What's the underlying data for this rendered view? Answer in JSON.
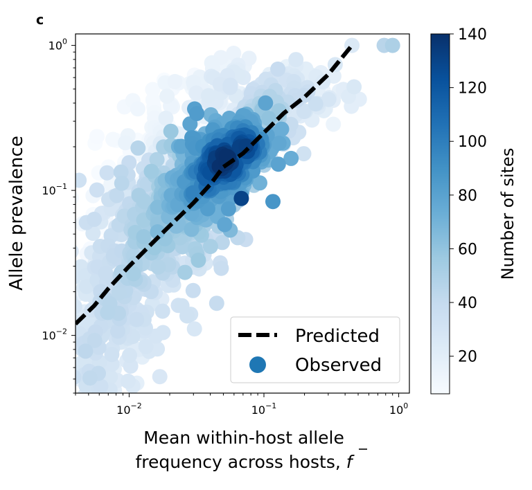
{
  "chart_data": {
    "type": "scatter",
    "panel_label": "c",
    "xlabel_line1": "Mean within-host allele",
    "xlabel_line2_prefix": "frequency across hosts, ",
    "xlabel_symbol": "f",
    "ylabel": "Allele prevalence",
    "xscale": "log",
    "yscale": "log",
    "xlim": [
      0.004,
      1.2
    ],
    "ylim": [
      0.004,
      1.2
    ],
    "x_ticks": [
      {
        "value": 0.01,
        "base": "10",
        "exp": "−2"
      },
      {
        "value": 0.1,
        "base": "10",
        "exp": "−1"
      },
      {
        "value": 1,
        "base": "10",
        "exp": "0"
      }
    ],
    "y_ticks": [
      {
        "value": 0.01,
        "base": "10",
        "exp": "−2"
      },
      {
        "value": 0.1,
        "base": "10",
        "exp": "−1"
      },
      {
        "value": 1,
        "base": "10",
        "exp": "0"
      }
    ],
    "colorbar": {
      "label": "Number of sites",
      "min": 6,
      "max": 140,
      "ticks": [
        20,
        40,
        60,
        80,
        100,
        120,
        140
      ],
      "colormap": "Blues",
      "stops": [
        "#f7fbff",
        "#deebf7",
        "#c6dbef",
        "#9ecae1",
        "#6baed6",
        "#4292c6",
        "#2171b5",
        "#08519c",
        "#08306b"
      ]
    },
    "legend": {
      "placement": "lower-right",
      "entries": [
        {
          "label": "Predicted",
          "marker": "dashed-line",
          "color": "#000000"
        },
        {
          "label": "Observed",
          "marker": "circle",
          "color": "#1f77b4"
        }
      ]
    },
    "series": [
      {
        "name": "Predicted",
        "kind": "line",
        "color": "#000000",
        "style": "dashed",
        "x": [
          0.004,
          0.0055,
          0.007,
          0.01,
          0.014,
          0.02,
          0.03,
          0.04,
          0.05,
          0.07,
          0.1,
          0.14,
          0.2,
          0.3,
          0.45
        ],
        "y": [
          0.012,
          0.016,
          0.021,
          0.03,
          0.041,
          0.057,
          0.082,
          0.11,
          0.145,
          0.18,
          0.25,
          0.34,
          0.44,
          0.63,
          1.0
        ]
      },
      {
        "name": "Observed",
        "kind": "density-scatter",
        "points": [
          {
            "x": 0.45,
            "y": 1.0,
            "c": 25
          },
          {
            "x": 0.78,
            "y": 1.0,
            "c": 45
          },
          {
            "x": 0.9,
            "y": 1.0,
            "c": 50
          },
          {
            "x": 0.005,
            "y": 0.0055,
            "c": 15
          },
          {
            "x": 0.068,
            "y": 0.088,
            "c": 130
          },
          {
            "x": 0.009,
            "y": 0.14,
            "c": 8
          },
          {
            "x": 0.23,
            "y": 0.62,
            "c": 20
          },
          {
            "x": 0.11,
            "y": 0.63,
            "c": 18
          }
        ],
        "density_clouds": [
          {
            "x": 0.005,
            "y": 0.0065,
            "sx": 0.16,
            "sy": 0.16,
            "n": 40,
            "c": 40
          },
          {
            "x": 0.006,
            "y": 0.009,
            "sx": 0.18,
            "sy": 0.2,
            "n": 60,
            "c": 35
          },
          {
            "x": 0.008,
            "y": 0.016,
            "sx": 0.2,
            "sy": 0.22,
            "n": 90,
            "c": 40
          },
          {
            "x": 0.007,
            "y": 0.05,
            "sx": 0.12,
            "sy": 0.3,
            "n": 40,
            "c": 10
          },
          {
            "x": 0.011,
            "y": 0.03,
            "sx": 0.22,
            "sy": 0.22,
            "n": 110,
            "c": 45
          },
          {
            "x": 0.012,
            "y": 0.12,
            "sx": 0.16,
            "sy": 0.18,
            "n": 50,
            "c": 12
          },
          {
            "x": 0.016,
            "y": 0.05,
            "sx": 0.22,
            "sy": 0.22,
            "n": 130,
            "c": 55
          },
          {
            "x": 0.02,
            "y": 0.2,
            "sx": 0.18,
            "sy": 0.18,
            "n": 50,
            "c": 18
          },
          {
            "x": 0.022,
            "y": 0.075,
            "sx": 0.2,
            "sy": 0.2,
            "n": 140,
            "c": 65
          },
          {
            "x": 0.028,
            "y": 0.4,
            "sx": 0.18,
            "sy": 0.14,
            "n": 40,
            "c": 16
          },
          {
            "x": 0.03,
            "y": 0.1,
            "sx": 0.18,
            "sy": 0.18,
            "n": 120,
            "c": 85
          },
          {
            "x": 0.055,
            "y": 0.5,
            "sx": 0.18,
            "sy": 0.12,
            "n": 50,
            "c": 24
          },
          {
            "x": 0.04,
            "y": 0.13,
            "sx": 0.14,
            "sy": 0.15,
            "n": 120,
            "c": 110
          },
          {
            "x": 0.15,
            "y": 0.5,
            "sx": 0.18,
            "sy": 0.12,
            "n": 40,
            "c": 28
          },
          {
            "x": 0.05,
            "y": 0.16,
            "sx": 0.13,
            "sy": 0.13,
            "n": 150,
            "c": 132
          },
          {
            "x": 0.07,
            "y": 0.2,
            "sx": 0.12,
            "sy": 0.12,
            "n": 110,
            "c": 120
          },
          {
            "x": 0.11,
            "y": 0.35,
            "sx": 0.14,
            "sy": 0.12,
            "n": 60,
            "c": 55
          },
          {
            "x": 0.2,
            "y": 0.45,
            "sx": 0.14,
            "sy": 0.12,
            "n": 40,
            "c": 35
          }
        ]
      }
    ]
  }
}
